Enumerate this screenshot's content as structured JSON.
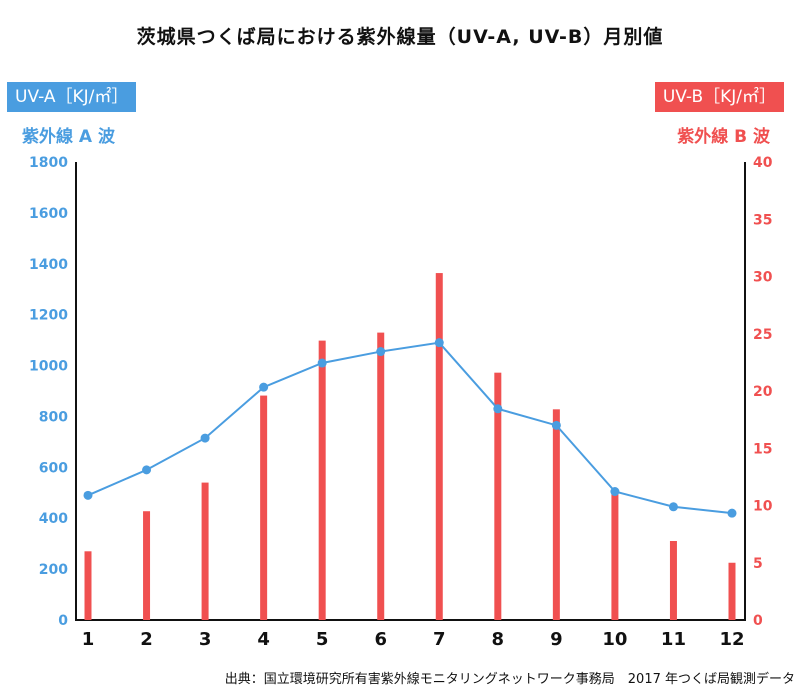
{
  "chart_data": {
    "type": "bar+line",
    "title": "茨城県つくば局における紫外線量（UV-A, UV-B）月別値",
    "categories": [
      "1",
      "2",
      "3",
      "4",
      "5",
      "6",
      "7",
      "8",
      "9",
      "10",
      "11",
      "12"
    ],
    "left_axis": {
      "badge": "UV-A［KJ/㎡］",
      "label": "紫外線 A 波",
      "ylim": [
        0,
        1800
      ],
      "ticks": [
        0,
        200,
        400,
        600,
        800,
        1000,
        1200,
        1400,
        1600,
        1800
      ],
      "color": "#4a9de0"
    },
    "right_axis": {
      "badge": "UV-B［KJ/㎡］",
      "label": "紫外線 B 波",
      "ylim": [
        0,
        40
      ],
      "ticks": [
        0,
        5,
        10,
        15,
        20,
        25,
        30,
        35,
        40
      ],
      "color": "#f05050"
    },
    "series": [
      {
        "name": "UV-A",
        "type": "line",
        "axis": "left",
        "values": [
          490,
          590,
          715,
          915,
          1010,
          1055,
          1090,
          830,
          765,
          505,
          445,
          420
        ]
      },
      {
        "name": "UV-B",
        "type": "bar",
        "axis": "right",
        "values": [
          6.0,
          9.5,
          12.0,
          19.6,
          24.4,
          25.1,
          30.3,
          21.6,
          18.4,
          11.2,
          6.9,
          5.0
        ]
      }
    ],
    "grid": false,
    "source": "出典：国立環境研究所有害紫外線モニタリングネットワーク事務局　2017 年つくば局観測データ"
  }
}
